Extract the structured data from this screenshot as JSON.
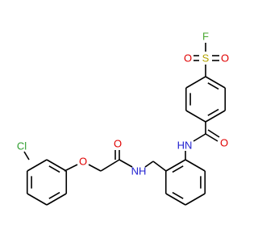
{
  "atoms": {
    "fluorine": "F",
    "sulfur": "S",
    "sulfonyl_o_left": "O",
    "sulfonyl_o_right": "O",
    "amide_o_1": "O",
    "amide_n_1": "HN",
    "amide_o_2": "O",
    "amide_n_2": "NH",
    "ether_o": "O",
    "chlorine": "Cl"
  }
}
